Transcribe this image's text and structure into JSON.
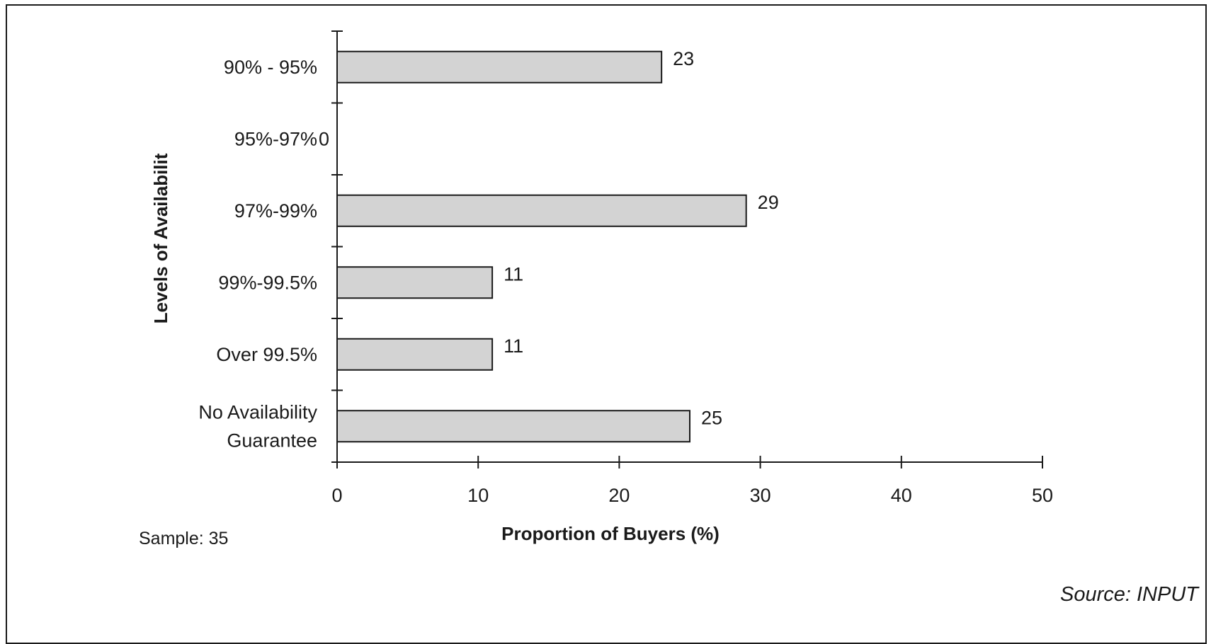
{
  "chart_data": {
    "type": "bar",
    "orientation": "horizontal",
    "categories": [
      "90% - 95%",
      "95%-97%",
      "97%-99%",
      "99%-99.5%",
      "Over 99.5%",
      "No Availability Guarantee"
    ],
    "category_lines": [
      [
        "90% - 95%"
      ],
      [
        "95%-97%"
      ],
      [
        "97%-99%"
      ],
      [
        "99%-99.5%"
      ],
      [
        "Over 99.5%"
      ],
      [
        "No Availability",
        "Guarantee"
      ]
    ],
    "values": [
      23,
      0,
      29,
      11,
      11,
      25
    ],
    "data_labels": [
      "23",
      "0",
      "29",
      "11",
      "11",
      "25"
    ],
    "xlabel": "Proportion of Buyers (%)",
    "ylabel": "Levels of Availabilit",
    "xlim": [
      0,
      50
    ],
    "xticks": [
      0,
      10,
      20,
      30,
      40,
      50
    ],
    "grid": false,
    "bar_color": "#d3d3d3",
    "bar_edge_color": "#1a1a1a",
    "axis_color": "#1a1a1a"
  },
  "notes": {
    "sample": "Sample: 35",
    "source": "Source: INPUT"
  }
}
